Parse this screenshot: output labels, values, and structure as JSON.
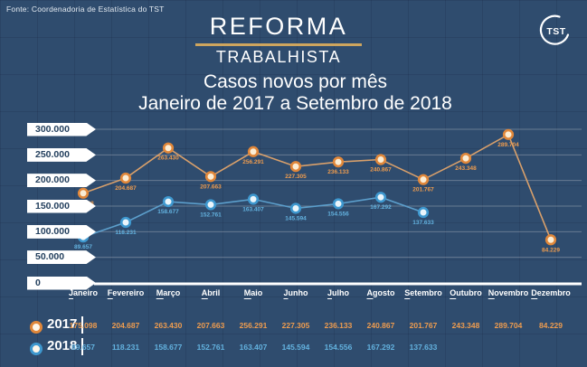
{
  "source": "Fonte: Coordenadoria de Estatística do TST",
  "logo": {
    "text": "TST"
  },
  "header": {
    "title_top": "REFORMA",
    "title_bottom": "TRABALHISTA",
    "subtitle_line1": "Casos novos por mês",
    "subtitle_line2": "Janeiro de 2017 a Setembro de 2018"
  },
  "chart_data": {
    "type": "line",
    "title": "Casos novos por mês — Janeiro de 2017 a Setembro de 2018",
    "categories": [
      "Janeiro",
      "Fevereiro",
      "Março",
      "Abril",
      "Maio",
      "Junho",
      "Julho",
      "Agosto",
      "Setembro",
      "Outubro",
      "Novembro",
      "Dezembro"
    ],
    "y_axis_labels": [
      "300.000",
      "250.000",
      "200.000",
      "150.000",
      "100.000",
      "50.000",
      "0"
    ],
    "ylim": [
      0,
      300000
    ],
    "grid": true,
    "legend_position": "bottom",
    "series": [
      {
        "name": "2017",
        "values": [
          175098,
          204687,
          263430,
          207663,
          256291,
          227305,
          236133,
          240867,
          201767,
          243348,
          289704,
          84229
        ],
        "labels": [
          "175.098",
          "204.687",
          "263.430",
          "207.663",
          "256.291",
          "227.305",
          "236.133",
          "240.867",
          "201.767",
          "243.348",
          "289.704",
          "84.229"
        ],
        "line_color": "#D9A06B",
        "marker_stroke": "#E0873A",
        "marker_fill": "#FAEDD5",
        "label_color": "#EE9C4F"
      },
      {
        "name": "2018",
        "values": [
          89657,
          118231,
          158677,
          152761,
          163407,
          145594,
          154556,
          167292,
          137633
        ],
        "labels": [
          "89.657",
          "118.231",
          "158.677",
          "152.761",
          "163.407",
          "145.594",
          "154.556",
          "167.292",
          "137.633"
        ],
        "line_color": "#5C9FCC",
        "marker_stroke": "#3E98CF",
        "marker_fill": "#EAF5FB",
        "label_color": "#63B2DF"
      }
    ]
  },
  "colors": {
    "background": "#2F4C6E",
    "accent_gold": "#CEA55E",
    "pill_text": "#24405E",
    "gridline": "#9FAAB8",
    "axis": "#FFFFFF"
  }
}
